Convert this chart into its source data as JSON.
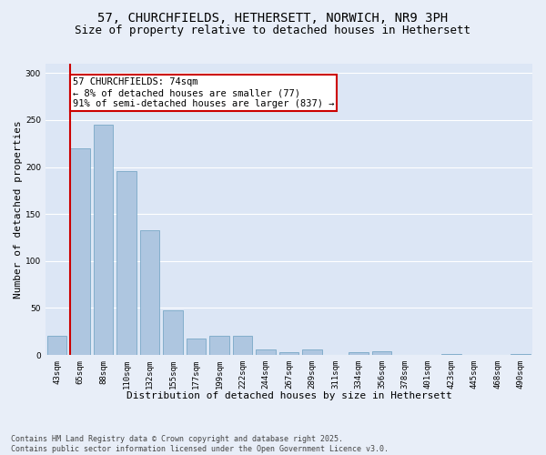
{
  "title_line1": "57, CHURCHFIELDS, HETHERSETT, NORWICH, NR9 3PH",
  "title_line2": "Size of property relative to detached houses in Hethersett",
  "xlabel": "Distribution of detached houses by size in Hethersett",
  "ylabel": "Number of detached properties",
  "categories": [
    "43sqm",
    "65sqm",
    "88sqm",
    "110sqm",
    "132sqm",
    "155sqm",
    "177sqm",
    "199sqm",
    "222sqm",
    "244sqm",
    "267sqm",
    "289sqm",
    "311sqm",
    "334sqm",
    "356sqm",
    "378sqm",
    "401sqm",
    "423sqm",
    "445sqm",
    "468sqm",
    "490sqm"
  ],
  "values": [
    20,
    220,
    245,
    196,
    133,
    48,
    18,
    20,
    20,
    6,
    3,
    6,
    0,
    3,
    4,
    0,
    0,
    1,
    0,
    0,
    1
  ],
  "bar_color": "#aec6e0",
  "bar_edge_color": "#6a9fc0",
  "highlight_color": "#cc0000",
  "annotation_text": "57 CHURCHFIELDS: 74sqm\n← 8% of detached houses are smaller (77)\n91% of semi-detached houses are larger (837) →",
  "annotation_box_color": "#ffffff",
  "annotation_box_edge": "#cc0000",
  "ylim": [
    0,
    310
  ],
  "yticks": [
    0,
    50,
    100,
    150,
    200,
    250,
    300
  ],
  "background_color": "#dce6f5",
  "grid_color": "#ffffff",
  "fig_background": "#e8eef8",
  "footer_line1": "Contains HM Land Registry data © Crown copyright and database right 2025.",
  "footer_line2": "Contains public sector information licensed under the Open Government Licence v3.0.",
  "title_fontsize": 10,
  "subtitle_fontsize": 9,
  "axis_label_fontsize": 8,
  "tick_fontsize": 6.5,
  "annotation_fontsize": 7.5,
  "footer_fontsize": 6
}
